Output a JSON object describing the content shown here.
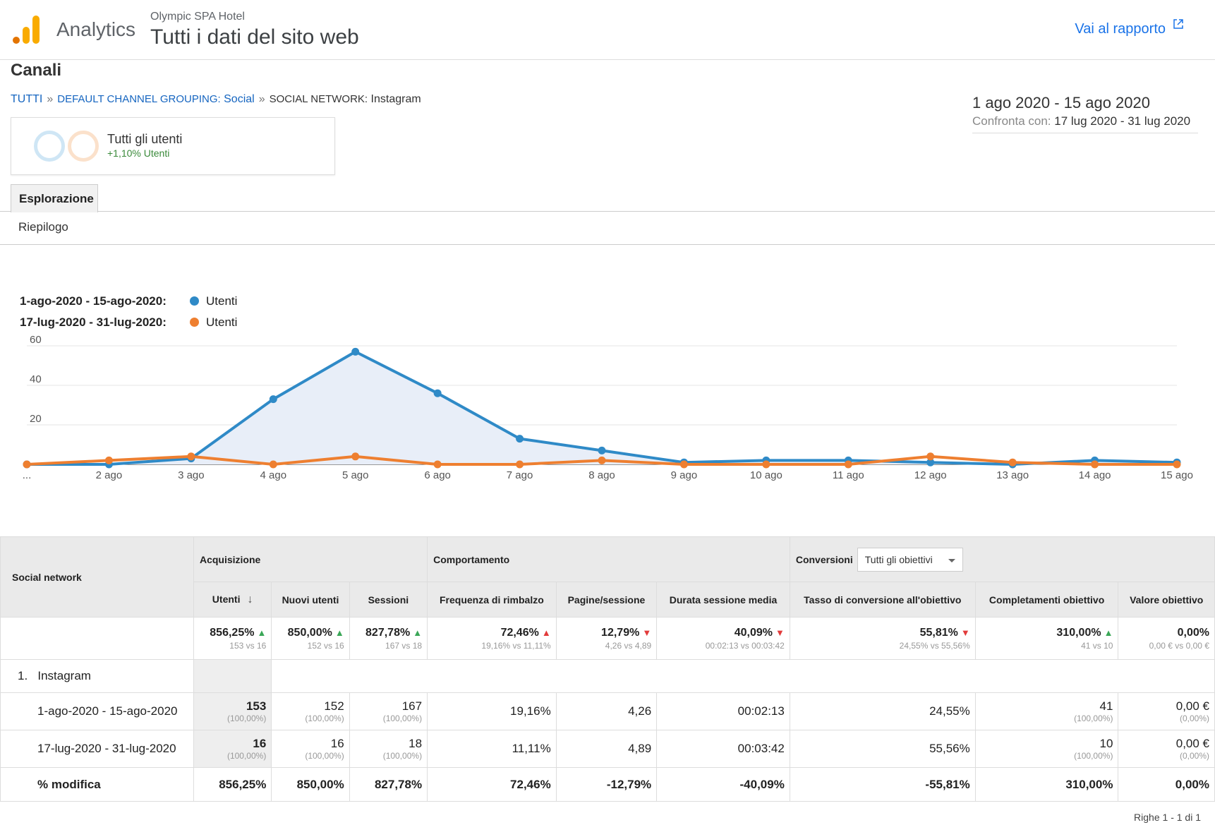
{
  "header": {
    "app_name": "Analytics",
    "account": "Olympic SPA Hotel",
    "property": "Tutti i dati del sito web",
    "report_link": "Vai al rapporto"
  },
  "page_title": "Canali",
  "breadcrumb": {
    "root": "TUTTI",
    "level1_key": "DEFAULT CHANNEL GROUPING:",
    "level1_value": "Social",
    "level2_key": "SOCIAL NETWORK:",
    "level2_value": "Instagram"
  },
  "date_range": {
    "main": "1 ago 2020 - 15 ago 2020",
    "compare_label": "Confronta con:",
    "compare_value": "17 lug 2020 - 31 lug 2020"
  },
  "segment": {
    "name": "Tutti gli utenti",
    "change": "+1,10% Utenti"
  },
  "tabs": {
    "explore": "Esplorazione",
    "summary": "Riepilogo"
  },
  "legend": [
    {
      "range": "1-ago-2020 - 15-ago-2020:",
      "metric": "Utenti",
      "color": "#2f8ac7"
    },
    {
      "range": "17-lug-2020 - 31-lug-2020:",
      "metric": "Utenti",
      "color": "#ee7f30"
    }
  ],
  "chart_data": {
    "type": "line",
    "x": [
      "...",
      "2 ago",
      "3 ago",
      "4 ago",
      "5 ago",
      "6 ago",
      "7 ago",
      "8 ago",
      "9 ago",
      "10 ago",
      "11 ago",
      "12 ago",
      "13 ago",
      "14 ago",
      "15 ago"
    ],
    "series": [
      {
        "name": "1-ago-2020 - 15-ago-2020",
        "values": [
          0,
          0,
          3,
          33,
          57,
          36,
          13,
          7,
          1,
          2,
          2,
          1,
          0,
          2,
          1
        ]
      },
      {
        "name": "17-lug-2020 - 31-lug-2020",
        "values": [
          0,
          2,
          4,
          0,
          4,
          0,
          0,
          2,
          0,
          0,
          0,
          4,
          1,
          0,
          0
        ]
      }
    ],
    "ylim": [
      0,
      60
    ],
    "yticks": [
      "20",
      "40",
      "60"
    ],
    "grid": true
  },
  "table": {
    "col_dimension": "Social network",
    "groups": {
      "acquisition": "Acquisizione",
      "behavior": "Comportamento",
      "conversions": "Conversioni",
      "goal_select": "Tutti gli obiettivi"
    },
    "columns": [
      "Utenti",
      "Nuovi utenti",
      "Sessioni",
      "Frequenza di rimbalzo",
      "Pagine/sessione",
      "Durata sessione media",
      "Tasso di conversione all'obiettivo",
      "Completamenti obiettivo",
      "Valore obiettivo"
    ],
    "summary": [
      {
        "value": "856,25%",
        "dir": "up",
        "sub": "153 vs 16"
      },
      {
        "value": "850,00%",
        "dir": "up",
        "sub": "152 vs 16"
      },
      {
        "value": "827,78%",
        "dir": "up",
        "sub": "167 vs 18"
      },
      {
        "value": "72,46%",
        "dir": "up-bad",
        "sub": "19,16% vs 11,11%"
      },
      {
        "value": "12,79%",
        "dir": "down",
        "sub": "4,26 vs 4,89"
      },
      {
        "value": "40,09%",
        "dir": "down",
        "sub": "00:02:13 vs 00:03:42"
      },
      {
        "value": "55,81%",
        "dir": "down",
        "sub": "24,55% vs 55,56%"
      },
      {
        "value": "310,00%",
        "dir": "up",
        "sub": "41 vs 10"
      },
      {
        "value": "0,00%",
        "dir": "none",
        "sub": "0,00 € vs 0,00 €"
      }
    ],
    "row_name": {
      "index": "1.",
      "label": "Instagram"
    },
    "rows": [
      {
        "label": "1-ago-2020 - 15-ago-2020",
        "cells": [
          [
            "153",
            "(100,00%)"
          ],
          [
            "152",
            "(100,00%)"
          ],
          [
            "167",
            "(100,00%)"
          ],
          [
            "19,16%",
            ""
          ],
          [
            "4,26",
            ""
          ],
          [
            "00:02:13",
            ""
          ],
          [
            "24,55%",
            ""
          ],
          [
            "41",
            "(100,00%)"
          ],
          [
            "0,00 €",
            "(0,00%)"
          ]
        ]
      },
      {
        "label": "17-lug-2020 - 31-lug-2020",
        "cells": [
          [
            "16",
            "(100,00%)"
          ],
          [
            "16",
            "(100,00%)"
          ],
          [
            "18",
            "(100,00%)"
          ],
          [
            "11,11%",
            ""
          ],
          [
            "4,89",
            ""
          ],
          [
            "00:03:42",
            ""
          ],
          [
            "55,56%",
            ""
          ],
          [
            "10",
            "(100,00%)"
          ],
          [
            "0,00 €",
            "(0,00%)"
          ]
        ]
      },
      {
        "label": "% modifica",
        "cells": [
          [
            "856,25%",
            ""
          ],
          [
            "850,00%",
            ""
          ],
          [
            "827,78%",
            ""
          ],
          [
            "72,46%",
            ""
          ],
          [
            "-12,79%",
            ""
          ],
          [
            "-40,09%",
            ""
          ],
          [
            "-55,81%",
            ""
          ],
          [
            "310,00%",
            ""
          ],
          [
            "0,00%",
            ""
          ]
        ]
      }
    ],
    "pager": "Righe 1 - 1 di 1"
  }
}
